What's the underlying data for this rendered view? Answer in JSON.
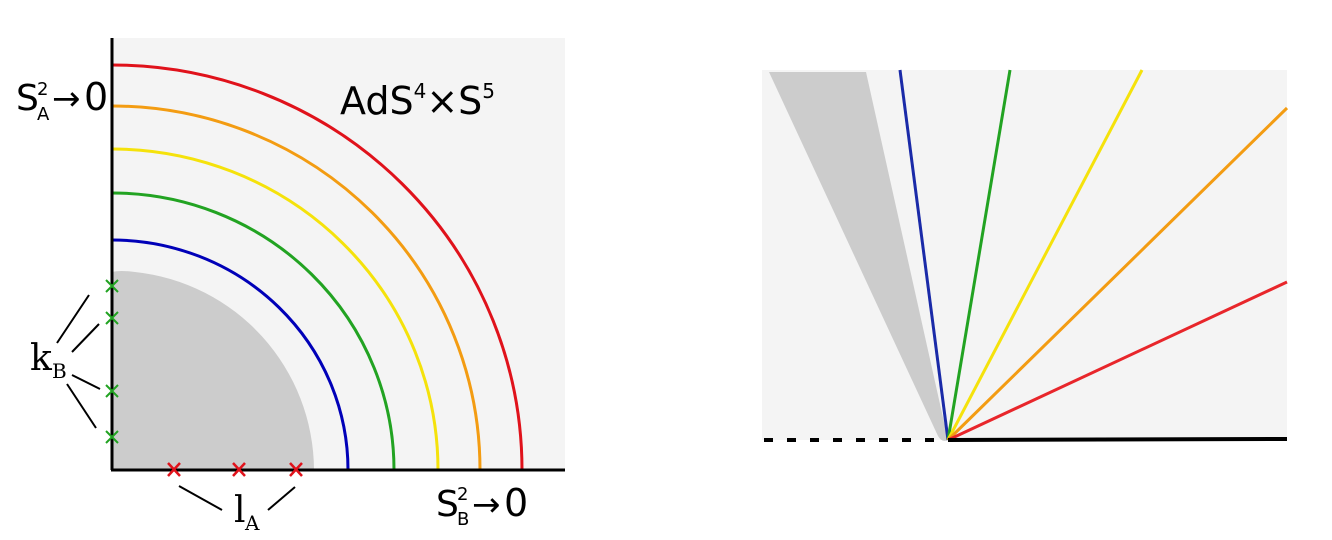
{
  "left_panel": {
    "corner_label": {
      "base": "AdS",
      "sup1": "4",
      "times": "×S",
      "sup2": "5"
    },
    "top_axis_label": {
      "s": "S",
      "sup": "2",
      "sub": "A",
      "arrow": "→",
      "zero": "0"
    },
    "bottom_axis_label": {
      "s": "S",
      "sup": "2",
      "sub": "B",
      "arrow": "→",
      "zero": "0"
    },
    "k_label": {
      "base": "k",
      "sub": "B"
    },
    "l_label": {
      "base": "l",
      "sub": "A"
    },
    "arc_colors": [
      "#0000b8",
      "#22a322",
      "#f5e20b",
      "#f39c12",
      "#e0121b"
    ],
    "region_color": "#cccccc",
    "background_color": "#f4f4f4",
    "green_cross_color": "#22a322",
    "red_cross_color": "#e0121b"
  },
  "right_panel": {
    "ray_colors": [
      "#1a2aa8",
      "#22a322",
      "#f5e20b",
      "#f39c12",
      "#e8262b"
    ],
    "region_color": "#cccccc",
    "background_color": "#f4f4f4"
  }
}
